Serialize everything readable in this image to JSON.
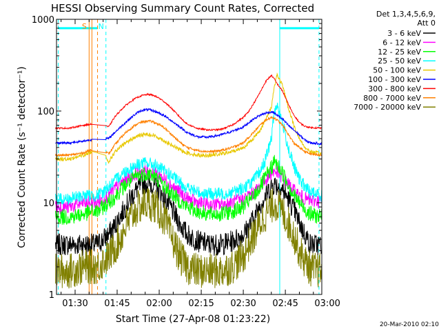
{
  "chart_data": {
    "type": "line",
    "title": "HESSI Observing Summary Count Rates, Corrected",
    "xlabel": "Start Time (27-Apr-08 01:23:22)",
    "ylabel": "Corrected Count Rate (s⁻¹ detector⁻¹)",
    "yscale": "log",
    "ylim": [
      1,
      1000
    ],
    "xlim": [
      "01:23:22",
      "02:58:00"
    ],
    "x_ticks": [
      "01:30",
      "01:45",
      "02:00",
      "02:15",
      "02:30",
      "02:45",
      "03:00"
    ],
    "y_ticks": [
      "1",
      "10",
      "100",
      "1000"
    ],
    "legend_header": [
      "Det 1,3,4,5,6,9,",
      "Att 0"
    ],
    "legend_position": "right",
    "timestamp": "20-Mar-2010 02:10",
    "x": [
      "01:23",
      "01:28",
      "01:33",
      "01:36",
      "01:38",
      "01:40",
      "01:42",
      "01:44",
      "01:46",
      "01:48",
      "01:50",
      "01:52",
      "01:54",
      "01:56",
      "01:58",
      "02:00",
      "02:02",
      "02:04",
      "02:06",
      "02:08",
      "02:10",
      "02:14",
      "02:18",
      "02:22",
      "02:26",
      "02:30",
      "02:32",
      "02:34",
      "02:36",
      "02:38",
      "02:40",
      "02:41",
      "02:42",
      "02:44",
      "02:46",
      "02:48",
      "02:50",
      "02:52",
      "02:54",
      "02:58"
    ],
    "series": [
      {
        "name": "3 - 6 keV",
        "color": "#000000",
        "values": [
          3.5,
          3.5,
          3.5,
          3.5,
          3.5,
          4,
          4.5,
          5.5,
          7,
          9,
          11.5,
          14,
          16,
          16.5,
          15.5,
          13.5,
          11,
          9,
          7,
          5.5,
          4.5,
          3.8,
          3.5,
          3.5,
          3.8,
          4.5,
          5.5,
          7,
          9.5,
          12,
          15,
          16,
          15.5,
          14,
          11,
          8.5,
          6,
          4.5,
          3.5,
          3.5
        ]
      },
      {
        "name": "6 - 12 keV",
        "color": "#ff00ff",
        "values": [
          9,
          9,
          10,
          10,
          10,
          11,
          12,
          14,
          16,
          18,
          19.5,
          21,
          22,
          22,
          21,
          20,
          18,
          16,
          14,
          12.5,
          11,
          10,
          9.5,
          9.5,
          10,
          11,
          12,
          13,
          15,
          18,
          21,
          22,
          21.5,
          19,
          16,
          13.5,
          12,
          11,
          10.5,
          10.5
        ]
      },
      {
        "name": "12 - 25 keV",
        "color": "#00ff00",
        "values": [
          7,
          7,
          7.5,
          8,
          8,
          9,
          10,
          11.5,
          13.5,
          15.5,
          17.5,
          19.5,
          20.5,
          21,
          19.5,
          17.5,
          15,
          13,
          11.5,
          10,
          9,
          8,
          7.5,
          7.5,
          8,
          9,
          10.5,
          12,
          15,
          19,
          24,
          28,
          26,
          21,
          16,
          12,
          10,
          8.5,
          7.5,
          7
        ]
      },
      {
        "name": "25 - 50 keV",
        "color": "#00ffff",
        "values": [
          11,
          11,
          12,
          12,
          12,
          13,
          15,
          17,
          20,
          22,
          24,
          26,
          27,
          27,
          26,
          24,
          22,
          20,
          18,
          16,
          14.5,
          13,
          12.5,
          12.5,
          13,
          14.5,
          16,
          18,
          22,
          30,
          50,
          95,
          120,
          75,
          40,
          25,
          18,
          15,
          13,
          12
        ]
      },
      {
        "name": "50 - 100 keV",
        "color": "#e8c800",
        "values": [
          30,
          30,
          33,
          36,
          38,
          36,
          28,
          35,
          40,
          45,
          49,
          53,
          55,
          56,
          54,
          51,
          47,
          43,
          40,
          37,
          35,
          33,
          33,
          34,
          36,
          40,
          45,
          52,
          62,
          80,
          110,
          180,
          250,
          190,
          110,
          70,
          50,
          40,
          36,
          34
        ]
      },
      {
        "name": "100 - 300 keV",
        "color": "#0000ff",
        "values": [
          45,
          45,
          47,
          49,
          52,
          50,
          50,
          58,
          66,
          75,
          85,
          95,
          102,
          104,
          100,
          95,
          88,
          80,
          72,
          65,
          58,
          52,
          52,
          55,
          60,
          67,
          75,
          83,
          90,
          95,
          98,
          96,
          90,
          82,
          70,
          62,
          55,
          48,
          45,
          44
        ]
      },
      {
        "name": "300 - 800 keV",
        "color": "#ff0000",
        "values": [
          65,
          65,
          70,
          72,
          75,
          72,
          67,
          85,
          100,
          115,
          128,
          140,
          148,
          152,
          148,
          138,
          125,
          110,
          95,
          82,
          72,
          64,
          62,
          63,
          70,
          85,
          100,
          125,
          160,
          210,
          245,
          225,
          200,
          165,
          120,
          90,
          75,
          68,
          66,
          65
        ]
      },
      {
        "name": "800 - 7000 keV",
        "color": "#ff8000",
        "values": [
          33,
          33,
          35,
          38,
          40,
          38,
          34,
          42,
          50,
          58,
          65,
          72,
          76,
          78,
          76,
          71,
          65,
          57,
          50,
          44,
          40,
          37,
          36,
          37,
          40,
          45,
          52,
          60,
          70,
          80,
          85,
          84,
          80,
          70,
          56,
          45,
          40,
          36,
          34,
          33
        ]
      },
      {
        "name": "7000 - 20000 keV",
        "color": "#808000",
        "values": [
          1.8,
          1.8,
          2,
          2,
          2,
          2.3,
          2.6,
          3.2,
          4,
          5.5,
          7,
          8.5,
          9.5,
          10,
          9.5,
          8,
          6.5,
          4.5,
          3.2,
          2.4,
          2,
          1.8,
          1.8,
          1.8,
          2,
          2.6,
          3.5,
          4.5,
          6,
          7.5,
          9,
          10,
          9.5,
          8,
          6,
          4.5,
          3,
          2.3,
          1.9,
          1.8
        ]
      }
    ],
    "annotations": [
      {
        "label": "S",
        "time": "01:35",
        "style": "solid",
        "color": "#ff8000"
      },
      {
        "label": "",
        "time": "01:36",
        "style": "solid",
        "color": "#ff8000"
      },
      {
        "label": "",
        "time": "01:38",
        "style": "dashed",
        "color": "#ff8000"
      },
      {
        "label": "N",
        "time": "01:41",
        "style": "dashed",
        "color": "#00ffff"
      },
      {
        "label": "",
        "time": "01:24",
        "style": "dashed",
        "color": "#00ffff"
      },
      {
        "label": "",
        "time": "02:43",
        "style": "solid",
        "color": "#00ffff"
      },
      {
        "label": "",
        "time": "02:57",
        "style": "dashed",
        "color": "#00ffff"
      }
    ],
    "night_bars": [
      [
        "01:24",
        "01:38"
      ],
      [
        "02:43",
        "02:57"
      ]
    ],
    "night_bar_level": 800,
    "night_bar_color": "#00ffff"
  }
}
